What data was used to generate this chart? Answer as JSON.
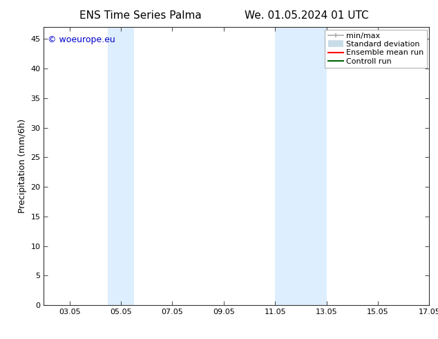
{
  "title_left": "ENS Time Series Palma",
  "title_right": "We. 01.05.2024 01 UTC",
  "ylabel": "Precipitation (mm/6h)",
  "xlim": [
    2.05,
    17.05
  ],
  "ylim": [
    0,
    47
  ],
  "yticks": [
    0,
    5,
    10,
    15,
    20,
    25,
    30,
    35,
    40,
    45
  ],
  "xticks": [
    3.05,
    5.05,
    7.05,
    9.05,
    11.05,
    13.05,
    15.05,
    17.05
  ],
  "xticklabels": [
    "03.05",
    "05.05",
    "07.05",
    "09.05",
    "11.05",
    "13.05",
    "15.05",
    "17.05"
  ],
  "watermark": "© woeurope.eu",
  "watermark_color": "#0000cc",
  "bg_color": "#ffffff",
  "shaded_bands": [
    {
      "xmin": 4.55,
      "xmax": 5.55,
      "color": "#ddeeff"
    },
    {
      "xmin": 11.05,
      "xmax": 13.05,
      "color": "#ddeeff"
    }
  ],
  "legend_items": [
    {
      "label": "min/max",
      "color": "#aaaaaa",
      "lw": 1.2,
      "style": "line_with_caps"
    },
    {
      "label": "Standard deviation",
      "color": "#c8dce8",
      "lw": 7,
      "style": "thick_line"
    },
    {
      "label": "Ensemble mean run",
      "color": "#ff0000",
      "lw": 1.5,
      "style": "line"
    },
    {
      "label": "Controll run",
      "color": "#006600",
      "lw": 1.5,
      "style": "line"
    }
  ],
  "title_fontsize": 11,
  "tick_fontsize": 8,
  "ylabel_fontsize": 9,
  "legend_fontsize": 8,
  "watermark_fontsize": 9
}
